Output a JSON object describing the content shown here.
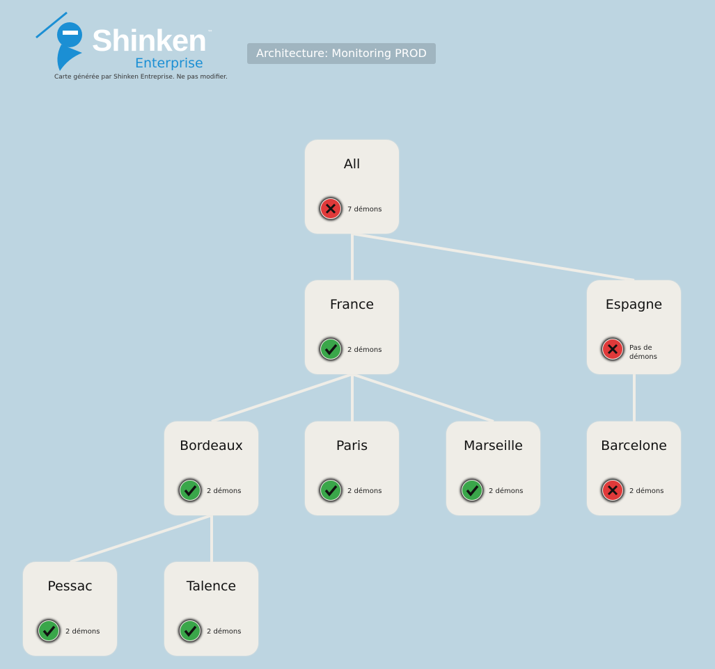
{
  "header": {
    "brand": "Shinken",
    "brand_tm": "™",
    "brand_sub": "Enterprise",
    "notice": "Carte générée par Shinken Entreprise. Ne pas modifier.",
    "title": "Architecture: Monitoring PROD"
  },
  "colors": {
    "background": "#bdd5e1",
    "node": "#efede7",
    "ok": "#3aa64a",
    "error": "#e03a3a",
    "link": "#efede7"
  },
  "nodes": [
    {
      "name": "All",
      "status": "error",
      "count": "7 démons",
      "parent": null
    },
    {
      "name": "France",
      "status": "ok",
      "count": "2 démons",
      "parent": "All"
    },
    {
      "name": "Espagne",
      "status": "error",
      "count": "Pas de démons",
      "parent": "All"
    },
    {
      "name": "Bordeaux",
      "status": "ok",
      "count": "2 démons",
      "parent": "France"
    },
    {
      "name": "Paris",
      "status": "ok",
      "count": "2 démons",
      "parent": "France"
    },
    {
      "name": "Marseille",
      "status": "ok",
      "count": "2 démons",
      "parent": "France"
    },
    {
      "name": "Barcelone",
      "status": "error",
      "count": "2 démons",
      "parent": "Espagne"
    },
    {
      "name": "Pessac",
      "status": "ok",
      "count": "2 démons",
      "parent": "Bordeaux"
    },
    {
      "name": "Talence",
      "status": "ok",
      "count": "2 démons",
      "parent": "Bordeaux"
    }
  ]
}
